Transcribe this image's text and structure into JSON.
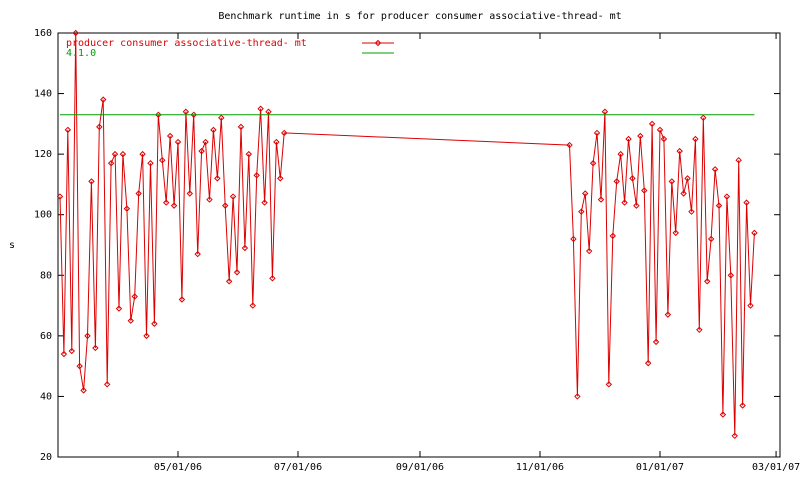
{
  "chart_data": {
    "type": "line",
    "title": "Benchmark runtime in s for producer consumer associative-thread-  mt",
    "ylabel": "s",
    "xlim": [
      "2006-03-01",
      "2007-03-03"
    ],
    "xticks": [
      {
        "value": "2006-05-01",
        "label": "05/01/06"
      },
      {
        "value": "2006-07-01",
        "label": "07/01/06"
      },
      {
        "value": "2006-09-01",
        "label": "09/01/06"
      },
      {
        "value": "2006-11-01",
        "label": "11/01/06"
      },
      {
        "value": "2007-01-01",
        "label": "01/01/07"
      },
      {
        "value": "2007-03-01",
        "label": "03/01/07"
      }
    ],
    "ylim": [
      20,
      160
    ],
    "yticks": [
      20,
      40,
      60,
      80,
      100,
      120,
      140,
      160
    ],
    "legend": "top-left",
    "series": [
      {
        "name": "producer consumer associative-thread-  mt",
        "color": "#dd0000",
        "marker": "diamond",
        "x": [
          "2006-03-02",
          "2006-03-04",
          "2006-03-06",
          "2006-03-08",
          "2006-03-10",
          "2006-03-12",
          "2006-03-14",
          "2006-03-16",
          "2006-03-18",
          "2006-03-20",
          "2006-03-22",
          "2006-03-24",
          "2006-03-26",
          "2006-03-28",
          "2006-03-30",
          "2006-04-01",
          "2006-04-03",
          "2006-04-05",
          "2006-04-07",
          "2006-04-09",
          "2006-04-11",
          "2006-04-13",
          "2006-04-15",
          "2006-04-17",
          "2006-04-19",
          "2006-04-21",
          "2006-04-23",
          "2006-04-25",
          "2006-04-27",
          "2006-04-29",
          "2006-05-01",
          "2006-05-03",
          "2006-05-05",
          "2006-05-07",
          "2006-05-09",
          "2006-05-11",
          "2006-05-13",
          "2006-05-15",
          "2006-05-17",
          "2006-05-19",
          "2006-05-21",
          "2006-05-23",
          "2006-05-25",
          "2006-05-27",
          "2006-05-29",
          "2006-05-31",
          "2006-06-02",
          "2006-06-04",
          "2006-06-06",
          "2006-06-08",
          "2006-06-10",
          "2006-06-12",
          "2006-06-14",
          "2006-06-16",
          "2006-06-18",
          "2006-06-20",
          "2006-06-22",
          "2006-06-24",
          "2006-11-16",
          "2006-11-18",
          "2006-11-20",
          "2006-11-22",
          "2006-11-24",
          "2006-11-26",
          "2006-11-28",
          "2006-11-30",
          "2006-12-02",
          "2006-12-04",
          "2006-12-06",
          "2006-12-08",
          "2006-12-10",
          "2006-12-12",
          "2006-12-14",
          "2006-12-16",
          "2006-12-18",
          "2006-12-20",
          "2006-12-22",
          "2006-12-24",
          "2006-12-26",
          "2006-12-28",
          "2006-12-30",
          "2007-01-01",
          "2007-01-03",
          "2007-01-05",
          "2007-01-07",
          "2007-01-09",
          "2007-01-11",
          "2007-01-13",
          "2007-01-15",
          "2007-01-17",
          "2007-01-19",
          "2007-01-21",
          "2007-01-23",
          "2007-01-25",
          "2007-01-27",
          "2007-01-29",
          "2007-01-31",
          "2007-02-02",
          "2007-02-04",
          "2007-02-06",
          "2007-02-08",
          "2007-02-10",
          "2007-02-12",
          "2007-02-14",
          "2007-02-16",
          "2007-02-18"
        ],
        "values": [
          106,
          54,
          128,
          55,
          160,
          50,
          42,
          60,
          111,
          56,
          129,
          138,
          44,
          117,
          120,
          69,
          120,
          102,
          65,
          73,
          107,
          120,
          60,
          117,
          64,
          133,
          118,
          104,
          126,
          103,
          124,
          72,
          134,
          107,
          133,
          87,
          121,
          124,
          105,
          128,
          112,
          132,
          103,
          78,
          106,
          81,
          129,
          89,
          120,
          70,
          113,
          135,
          104,
          134,
          79,
          124,
          112,
          127,
          123,
          92,
          40,
          101,
          107,
          88,
          117,
          127,
          105,
          134,
          44,
          93,
          111,
          120,
          104,
          125,
          112,
          103,
          126,
          108,
          51,
          130,
          58,
          128,
          125,
          67,
          111,
          94,
          121,
          107,
          112,
          101,
          125,
          62,
          132,
          78,
          92,
          115,
          103,
          34,
          106,
          80,
          27,
          118,
          37,
          104,
          70,
          94
        ]
      },
      {
        "name": "4.1.0",
        "color": "#00a000",
        "x": [
          "2006-03-02",
          "2007-02-18"
        ],
        "values": [
          133,
          133
        ]
      }
    ]
  }
}
